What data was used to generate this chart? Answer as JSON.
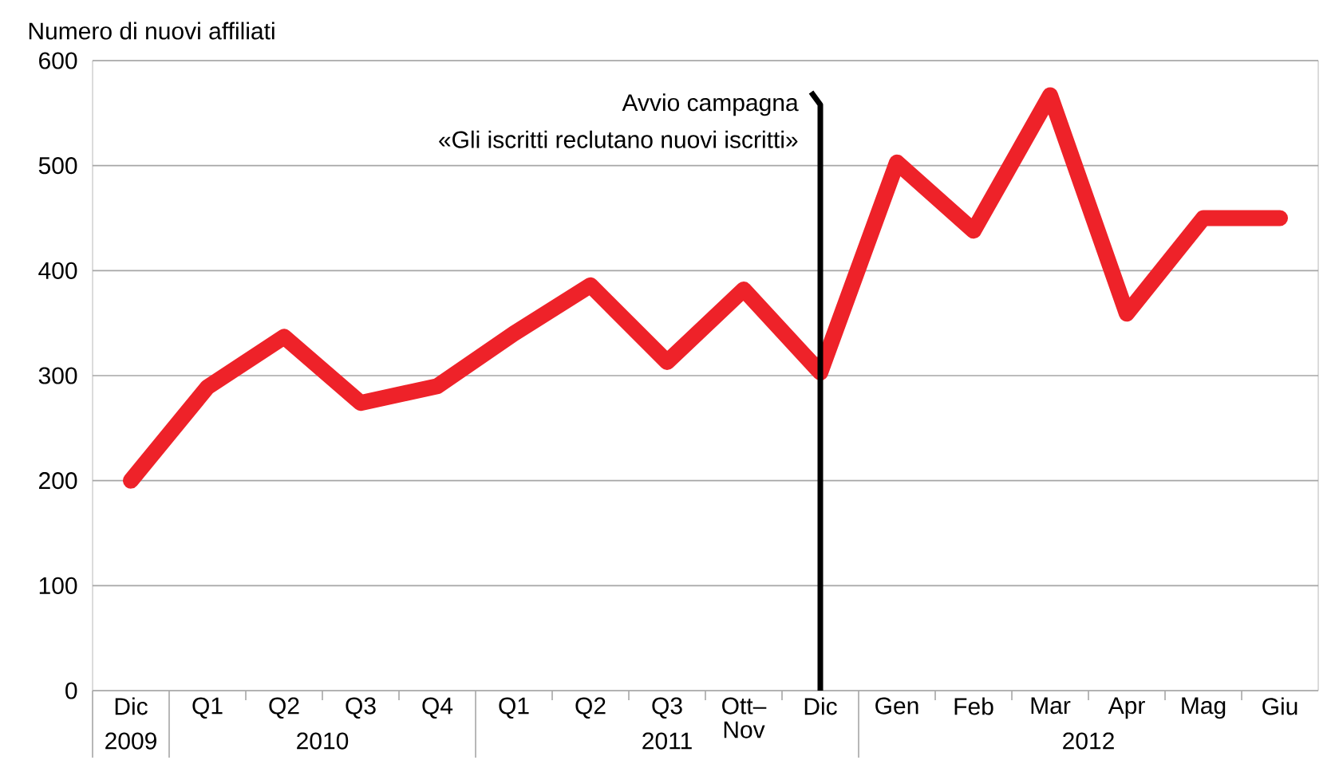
{
  "chart_data": {
    "type": "line",
    "ylabel": "Numero di nuovi affiliati",
    "categories": [
      "Dic",
      "Q1",
      "Q2",
      "Q3",
      "Q4",
      "Q1",
      "Q2",
      "Q3",
      "Ott–Nov",
      "Dic",
      "Gen",
      "Feb",
      "Mar",
      "Apr",
      "Mag",
      "Giu"
    ],
    "series": [
      {
        "color": "#ee2229",
        "values": [
          200,
          289,
          337,
          274,
          290,
          340,
          386,
          313,
          382,
          303,
          503,
          438,
          567,
          359,
          450,
          450
        ]
      }
    ],
    "ylim": [
      0,
      600
    ],
    "yticks": [
      0,
      100,
      200,
      300,
      400,
      500,
      600
    ],
    "grid": "y",
    "marker": "none",
    "line_style": "solid",
    "annotations": [
      "Avvio campagna",
      "«Gli iscritti reclutano nuovi iscritti»",
      "2009",
      "2010",
      "2011",
      "2012"
    ]
  }
}
